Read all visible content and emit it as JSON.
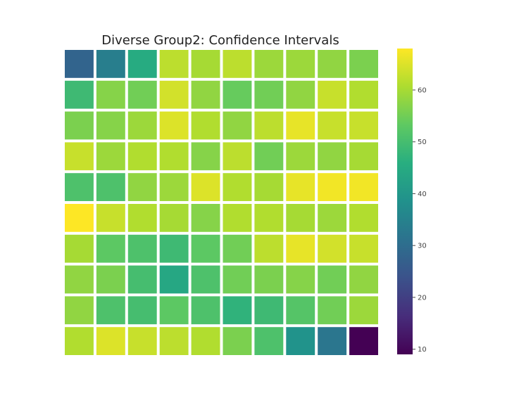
{
  "chart_data": {
    "type": "heatmap",
    "title": "Diverse Group2: Confidence Intervals",
    "xlabel": "",
    "ylabel": "",
    "colormap": "viridis",
    "vmin": 9,
    "vmax": 68,
    "grid": false,
    "legend": "colorbar-right",
    "colorbar_ticks": [
      10,
      20,
      30,
      40,
      50,
      60
    ],
    "colorbar_tick_labels": [
      "10",
      "20",
      "30",
      "40",
      "50",
      "60"
    ],
    "matrix": [
      [
        28,
        34,
        45,
        62,
        60,
        62,
        59,
        59,
        58,
        56
      ],
      [
        49,
        57,
        55,
        64,
        58,
        54,
        55,
        58,
        63,
        61
      ],
      [
        56,
        57,
        59,
        65,
        61,
        58,
        62,
        66,
        63,
        63
      ],
      [
        63,
        59,
        61,
        61,
        57,
        62,
        55,
        59,
        58,
        60
      ],
      [
        51,
        51,
        58,
        59,
        65,
        61,
        60,
        66,
        67,
        67
      ],
      [
        68,
        63,
        61,
        60,
        57,
        61,
        61,
        60,
        59,
        61
      ],
      [
        60,
        53,
        51,
        49,
        53,
        55,
        62,
        66,
        64,
        63
      ],
      [
        58,
        56,
        50,
        44,
        51,
        55,
        56,
        57,
        55,
        58
      ],
      [
        58,
        51,
        50,
        53,
        51,
        47,
        49,
        52,
        55,
        59
      ],
      [
        61,
        65,
        63,
        62,
        61,
        56,
        51,
        39,
        32,
        9
      ]
    ]
  }
}
